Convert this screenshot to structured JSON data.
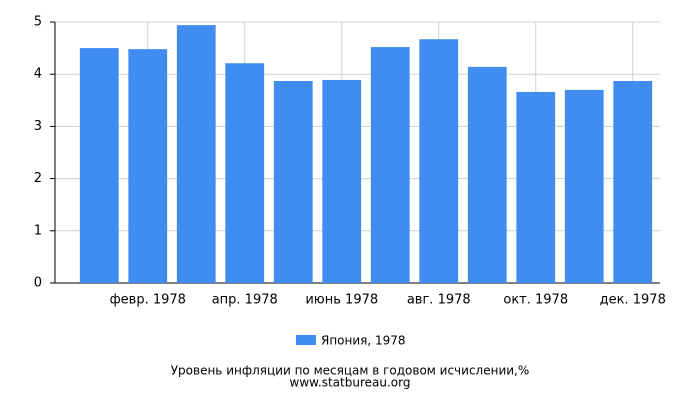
{
  "chart_data": {
    "type": "bar",
    "title": "Уровень инфляции по месяцам в годовом исчислении,%",
    "source": "www.statbureau.org",
    "categories": [
      null,
      "февр. 1978",
      null,
      "апр. 1978",
      null,
      "июнь 1978",
      null,
      "авг. 1978",
      null,
      "окт. 1978",
      null,
      "дек. 1978"
    ],
    "series": [
      {
        "name": "Япония, 1978",
        "color": "#418cf0",
        "values": [
          4.5,
          4.48,
          4.94,
          4.21,
          3.87,
          3.89,
          4.52,
          4.67,
          4.14,
          3.66,
          3.7,
          3.87
        ]
      }
    ],
    "ylim": [
      0,
      5
    ],
    "yticks": [
      0,
      1,
      2,
      3,
      4,
      5
    ],
    "grid": true
  }
}
